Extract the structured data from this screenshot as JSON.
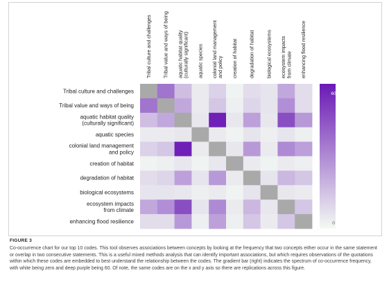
{
  "figure": {
    "label": "FIGURE 3",
    "caption": "Co-occurrence chart for our top 10 codes. This tool observes associations between concepts by looking at the frequency that two concepts either occur in the same statement or overlap in two consecutive statements. This is a useful mixed methods analysis that can identify important associations, but which requires observations of the quotations within which these codes are embedded to best understand the relationship between the codes. The gradient bar (right) indicates the spectrum of co-occurrence frequency, with white being zero and deep purple being 60. Of note, the same codes are on the x and y axis so there are replications across this figure."
  },
  "chart_data": {
    "type": "heatmap",
    "x_categories": [
      "Tribal culture and challenges",
      "Tribal value and ways of being",
      "aquatic habitat quality (culturally significant)",
      "aquatic species",
      "colonial land management and policy",
      "creation of habitat",
      "degradation of habitat",
      "biological ecosystems",
      "ecosystem impacts from climate",
      "enhancing flood resilience"
    ],
    "x_tick_lines": [
      [
        "Tribal culture and challenges"
      ],
      [
        "Tribal value and ways of being"
      ],
      [
        "aquatic habitat quality",
        "(culturally significant)"
      ],
      [
        "aquatic species"
      ],
      [
        "colonial land management",
        "and policy"
      ],
      [
        "creation of habitat"
      ],
      [
        "degradation of habitat"
      ],
      [
        "biological ecosystems"
      ],
      [
        "ecosystem impacts",
        "from climate"
      ],
      [
        "enhancing flood resilience"
      ]
    ],
    "y_categories": [
      "Tribal culture and challenges",
      "Tribal value and ways of being",
      "aquatic habitat quality (culturally significant)",
      "aquatic species",
      "colonial land management and policy",
      "creation of habitat",
      "degradation of habitat",
      "biological ecosystems",
      "ecosystem impacts from climate",
      "enhancing flood resilience"
    ],
    "y_tick_lines": [
      [
        "Tribal culture and challenges"
      ],
      [
        "Tribal value and ways of being"
      ],
      [
        "aquatic habitat quality",
        "(culturally significant)"
      ],
      [
        "aquatic species"
      ],
      [
        "colonial land management",
        "and policy"
      ],
      [
        "creation of habitat"
      ],
      [
        "degradation of habitat"
      ],
      [
        "biological ecosystems"
      ],
      [
        "ecosystem impacts",
        "from climate"
      ],
      [
        "enhancing flood resilience"
      ]
    ],
    "values": [
      [
        null,
        36,
        16,
        4,
        11,
        2,
        8,
        6,
        22,
        8
      ],
      [
        36,
        null,
        22,
        4,
        14,
        3,
        10,
        6,
        29,
        8
      ],
      [
        16,
        22,
        null,
        5,
        58,
        5,
        24,
        5,
        46,
        26
      ],
      [
        4,
        4,
        5,
        null,
        4,
        2,
        6,
        3,
        6,
        3
      ],
      [
        11,
        14,
        58,
        4,
        null,
        5,
        26,
        4,
        30,
        24
      ],
      [
        2,
        3,
        5,
        2,
        5,
        null,
        4,
        2,
        4,
        3
      ],
      [
        8,
        10,
        24,
        6,
        26,
        4,
        null,
        6,
        18,
        14
      ],
      [
        6,
        6,
        5,
        3,
        4,
        2,
        6,
        null,
        5,
        4
      ],
      [
        22,
        29,
        46,
        6,
        30,
        4,
        18,
        5,
        null,
        14
      ],
      [
        8,
        8,
        26,
        3,
        24,
        3,
        14,
        4,
        14,
        null
      ]
    ],
    "diagonal_color": "#a9a9a9",
    "scale": {
      "min": 0,
      "max": 60,
      "min_label": "0",
      "max_label": "60",
      "min_color": "#f4faf3",
      "max_color": "#6a1ab5"
    },
    "grid": false,
    "legend": "right"
  }
}
